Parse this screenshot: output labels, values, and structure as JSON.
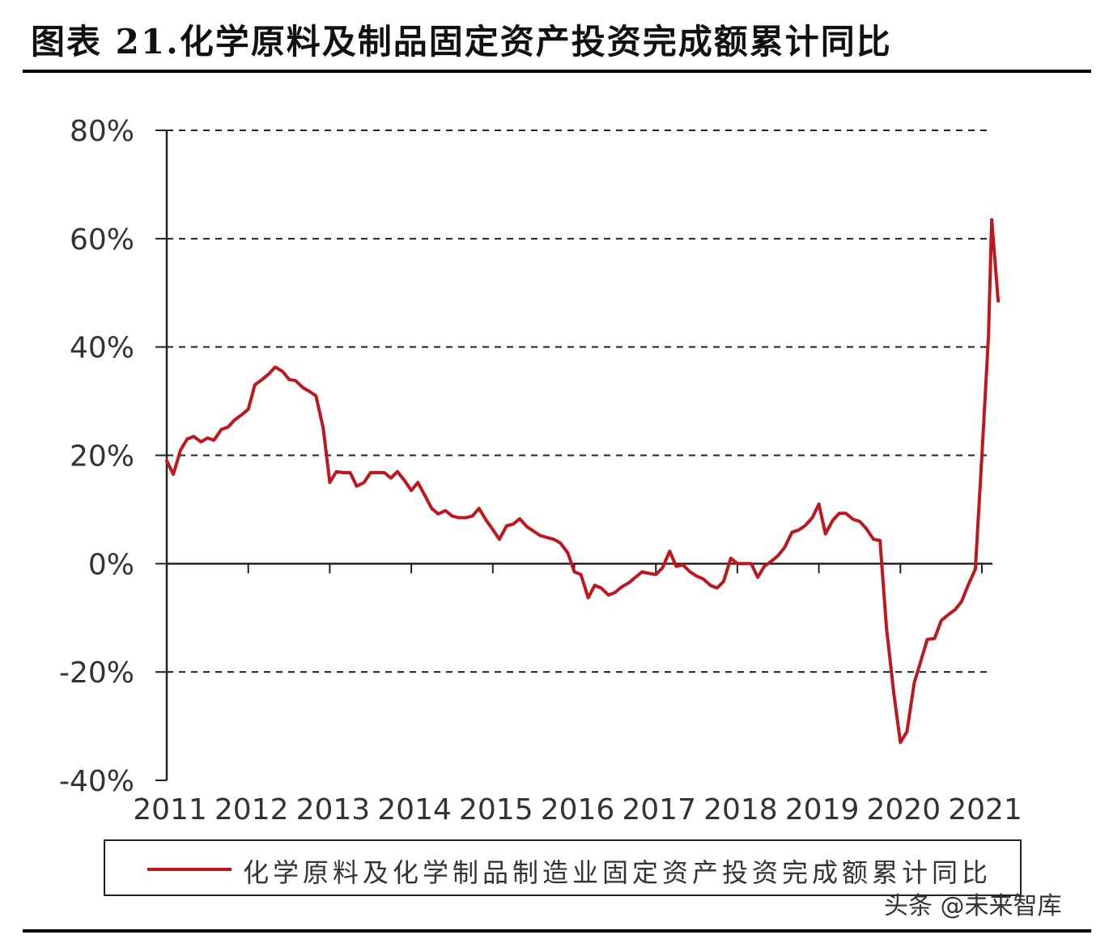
{
  "title": "图表 21.化学原料及制品固定资产投资完成额累计同比",
  "watermark": "头条 @未来智库",
  "colors": {
    "series": "#c0161e",
    "axis": "#222222",
    "grid": "#222222",
    "text": "#333333"
  },
  "chart_data": {
    "type": "line",
    "title": "图表 21.化学原料及制品固定资产投资完成额累计同比",
    "xlabel": "",
    "ylabel": "",
    "ylim": [
      -40,
      80
    ],
    "yticks": [
      80,
      60,
      40,
      20,
      0,
      -20,
      -40
    ],
    "ytick_labels": [
      "80%",
      "60%",
      "40%",
      "20%",
      "0%",
      "-20%",
      "-40%"
    ],
    "xlim": [
      2011,
      2021.2
    ],
    "xticks": [
      2011,
      2012,
      2013,
      2014,
      2015,
      2016,
      2017,
      2018,
      2019,
      2020,
      2021
    ],
    "xtick_labels": [
      "2011",
      "2012",
      "2013",
      "2014",
      "2015",
      "2016",
      "2017",
      "2018",
      "2019",
      "2020",
      "2021"
    ],
    "grid": "horizontal dashed",
    "legend_position": "bottom",
    "series": [
      {
        "name": "化学原料及化学制品制造业固定资产投资完成额累计同比",
        "color": "#c0161e",
        "points": [
          [
            2011.0,
            19.0
          ],
          [
            2011.08,
            16.5
          ],
          [
            2011.17,
            21.0
          ],
          [
            2011.25,
            23.0
          ],
          [
            2011.33,
            23.5
          ],
          [
            2011.42,
            22.5
          ],
          [
            2011.5,
            23.2
          ],
          [
            2011.58,
            22.8
          ],
          [
            2011.67,
            24.8
          ],
          [
            2011.75,
            25.2
          ],
          [
            2011.83,
            26.5
          ],
          [
            2011.92,
            27.5
          ],
          [
            2012.0,
            28.5
          ],
          [
            2012.08,
            33.0
          ],
          [
            2012.17,
            34.0
          ],
          [
            2012.25,
            35.0
          ],
          [
            2012.33,
            36.3
          ],
          [
            2012.42,
            35.5
          ],
          [
            2012.5,
            34.0
          ],
          [
            2012.58,
            33.8
          ],
          [
            2012.67,
            32.5
          ],
          [
            2012.75,
            31.8
          ],
          [
            2012.83,
            31.0
          ],
          [
            2012.92,
            25.0
          ],
          [
            2013.0,
            15.0
          ],
          [
            2013.08,
            17.0
          ],
          [
            2013.17,
            16.8
          ],
          [
            2013.25,
            16.8
          ],
          [
            2013.33,
            14.3
          ],
          [
            2013.42,
            15.0
          ],
          [
            2013.5,
            16.8
          ],
          [
            2013.58,
            16.8
          ],
          [
            2013.67,
            16.8
          ],
          [
            2013.75,
            15.8
          ],
          [
            2013.83,
            17.0
          ],
          [
            2013.92,
            15.3
          ],
          [
            2014.0,
            13.5
          ],
          [
            2014.08,
            15.0
          ],
          [
            2014.17,
            12.5
          ],
          [
            2014.25,
            10.2
          ],
          [
            2014.33,
            9.2
          ],
          [
            2014.42,
            9.8
          ],
          [
            2014.5,
            8.8
          ],
          [
            2014.58,
            8.5
          ],
          [
            2014.67,
            8.5
          ],
          [
            2014.75,
            8.8
          ],
          [
            2014.83,
            10.2
          ],
          [
            2014.92,
            8.0
          ],
          [
            2015.0,
            6.3
          ],
          [
            2015.08,
            4.5
          ],
          [
            2015.17,
            7.0
          ],
          [
            2015.25,
            7.3
          ],
          [
            2015.33,
            8.3
          ],
          [
            2015.42,
            6.8
          ],
          [
            2015.5,
            6.0
          ],
          [
            2015.58,
            5.2
          ],
          [
            2015.67,
            4.8
          ],
          [
            2015.75,
            4.5
          ],
          [
            2015.83,
            3.8
          ],
          [
            2015.92,
            2.0
          ],
          [
            2016.0,
            -1.5
          ],
          [
            2016.08,
            -2.0
          ],
          [
            2016.17,
            -6.3
          ],
          [
            2016.25,
            -4.0
          ],
          [
            2016.33,
            -4.5
          ],
          [
            2016.42,
            -5.8
          ],
          [
            2016.5,
            -5.3
          ],
          [
            2016.58,
            -4.3
          ],
          [
            2016.67,
            -3.5
          ],
          [
            2016.75,
            -2.5
          ],
          [
            2016.83,
            -1.5
          ],
          [
            2016.92,
            -1.8
          ],
          [
            2017.0,
            -2.0
          ],
          [
            2017.08,
            -0.8
          ],
          [
            2017.17,
            2.3
          ],
          [
            2017.25,
            -0.5
          ],
          [
            2017.33,
            -0.2
          ],
          [
            2017.42,
            -1.5
          ],
          [
            2017.5,
            -2.3
          ],
          [
            2017.58,
            -2.8
          ],
          [
            2017.67,
            -4.0
          ],
          [
            2017.75,
            -4.5
          ],
          [
            2017.83,
            -3.3
          ],
          [
            2017.92,
            1.0
          ],
          [
            2018.0,
            0.0
          ],
          [
            2018.08,
            0.0
          ],
          [
            2018.17,
            0.0
          ],
          [
            2018.25,
            -2.5
          ],
          [
            2018.33,
            -0.5
          ],
          [
            2018.42,
            0.5
          ],
          [
            2018.5,
            1.5
          ],
          [
            2018.58,
            3.0
          ],
          [
            2018.67,
            5.8
          ],
          [
            2018.75,
            6.2
          ],
          [
            2018.83,
            7.0
          ],
          [
            2018.92,
            8.5
          ],
          [
            2019.0,
            11.0
          ],
          [
            2019.08,
            5.5
          ],
          [
            2019.17,
            8.0
          ],
          [
            2019.25,
            9.3
          ],
          [
            2019.33,
            9.3
          ],
          [
            2019.42,
            8.2
          ],
          [
            2019.5,
            7.8
          ],
          [
            2019.58,
            6.5
          ],
          [
            2019.67,
            4.5
          ],
          [
            2019.75,
            4.3
          ],
          [
            2019.83,
            -12.0
          ],
          [
            2019.92,
            -24.0
          ],
          [
            2020.0,
            -33.0
          ],
          [
            2020.08,
            -31.0
          ],
          [
            2020.17,
            -22.0
          ],
          [
            2020.25,
            -18.0
          ],
          [
            2020.33,
            -14.0
          ],
          [
            2020.42,
            -13.8
          ],
          [
            2020.5,
            -10.5
          ],
          [
            2020.58,
            -9.5
          ],
          [
            2020.67,
            -8.5
          ],
          [
            2020.75,
            -7.0
          ],
          [
            2020.83,
            -4.0
          ],
          [
            2020.92,
            -1.0
          ],
          [
            2021.0,
            20.0
          ],
          [
            2021.08,
            42.0
          ],
          [
            2021.12,
            63.5
          ],
          [
            2021.2,
            48.5
          ]
        ]
      }
    ]
  }
}
